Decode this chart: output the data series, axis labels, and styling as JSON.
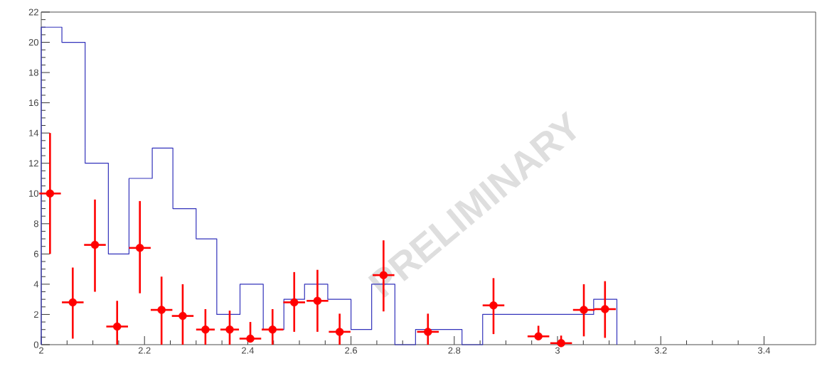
{
  "chart_data": {
    "type": "histogram",
    "xlim": [
      2,
      3.5
    ],
    "ylim": [
      0,
      22
    ],
    "xticks": [
      2,
      2.2,
      2.4,
      2.6,
      2.8,
      3,
      3.2,
      3.4
    ],
    "yticks": [
      0,
      2,
      4,
      6,
      8,
      10,
      12,
      14,
      16,
      18,
      20,
      22
    ],
    "annotations": [
      "PRELIMINARY"
    ],
    "series": [
      {
        "color": "#3333bb",
        "bins": [
          2.0,
          2.04,
          2.085,
          2.13,
          2.17,
          2.215,
          2.255,
          2.3,
          2.34,
          2.385,
          2.43,
          2.47,
          2.51,
          2.555,
          2.6,
          2.64,
          2.685,
          2.725,
          2.815,
          2.855,
          3.07,
          3.115
        ],
        "values": [
          21,
          20,
          12,
          6,
          11,
          13,
          9,
          7,
          2,
          4,
          1,
          3,
          4,
          3,
          1,
          4,
          0,
          1,
          0,
          2,
          3
        ]
      },
      {
        "type": "scatter",
        "color": "#ff0000",
        "x": [
          2.017,
          2.061,
          2.104,
          2.147,
          2.191,
          2.233,
          2.274,
          2.318,
          2.365,
          2.405,
          2.448,
          2.49,
          2.535,
          2.578,
          2.663,
          2.749,
          2.876,
          2.963,
          3.007,
          3.051,
          3.092
        ],
        "values": [
          10,
          2.8,
          6.6,
          1.2,
          6.4,
          2.3,
          1.9,
          1,
          1,
          0.4,
          1,
          2.8,
          2.9,
          0.85,
          4.6,
          0.85,
          2.6,
          0.55,
          0.1,
          2.3,
          2.35
        ],
        "errors": [
          [
            6,
            14
          ],
          [
            0.4,
            5.1
          ],
          [
            3.5,
            9.6
          ],
          [
            0,
            2.9
          ],
          [
            3.4,
            9.5
          ],
          [
            0,
            4.5
          ],
          [
            0,
            4
          ],
          [
            0,
            2.35
          ],
          [
            0,
            2.25
          ],
          [
            0.4,
            1.5
          ],
          [
            0,
            2.35
          ],
          [
            0.85,
            4.8
          ],
          [
            0.85,
            4.95
          ],
          [
            0,
            2.05
          ],
          [
            2.2,
            6.9
          ],
          [
            0,
            2.05
          ],
          [
            0.7,
            4.4
          ],
          [
            0.55,
            1.25
          ],
          [
            0,
            0.6
          ],
          [
            0.55,
            4
          ],
          [
            0.45,
            4.2
          ]
        ],
        "xerrors": [
          0.021,
          0.021,
          0.021,
          0.021,
          0.021,
          0.021,
          0.021,
          0.018,
          0.018,
          0.021,
          0.021,
          0.021,
          0.021,
          0.021,
          0.021,
          0.021,
          0.021,
          0.021,
          0.021,
          0.021,
          0.021
        ]
      }
    ]
  }
}
